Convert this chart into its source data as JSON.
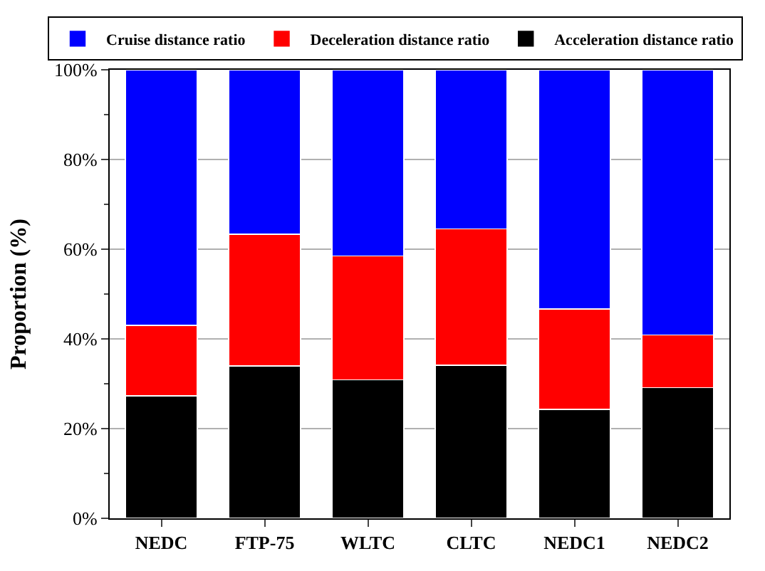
{
  "chart_data": {
    "type": "bar",
    "stacked": true,
    "ylabel": "Proportion (%)",
    "categories": [
      "NEDC",
      "FTP-75",
      "WLTC",
      "CLTC",
      "NEDC1",
      "NEDC2"
    ],
    "series": [
      {
        "name": "Acceleration distance ratio",
        "color": "#000000",
        "values": [
          27.3,
          34.0,
          30.9,
          34.1,
          24.3,
          29.1
        ]
      },
      {
        "name": "Deceleration distance ratio",
        "color": "#ff0000",
        "values": [
          15.7,
          29.3,
          27.6,
          30.4,
          22.4,
          11.8
        ]
      },
      {
        "name": "Cruise distance ratio",
        "color": "#0000ff",
        "values": [
          57.0,
          36.7,
          41.5,
          35.5,
          53.3,
          59.1
        ]
      }
    ],
    "ylim": [
      0,
      100
    ],
    "yticks": [
      {
        "value": 0,
        "label": "0%"
      },
      {
        "value": 20,
        "label": "20%"
      },
      {
        "value": 40,
        "label": "40%"
      },
      {
        "value": 60,
        "label": "60%"
      },
      {
        "value": 80,
        "label": "80%"
      },
      {
        "value": 100,
        "label": "100%"
      }
    ],
    "grid": "y",
    "legend": "top"
  }
}
